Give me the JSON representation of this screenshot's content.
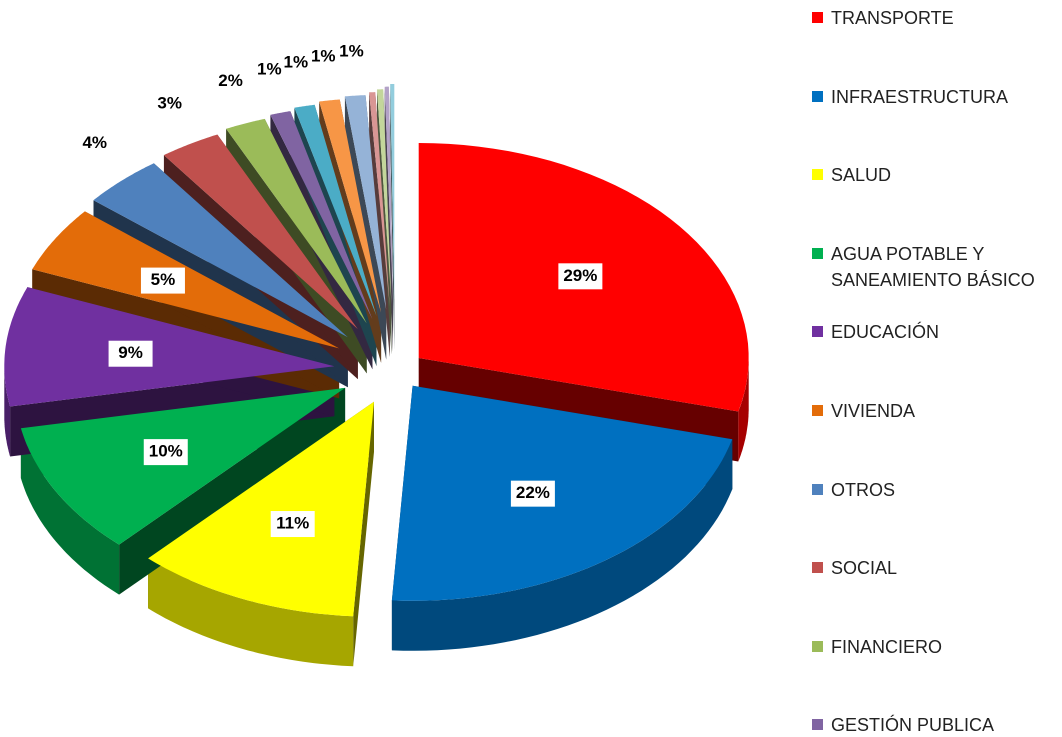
{
  "chart_data": {
    "type": "pie",
    "categories": [
      "TRANSPORTE",
      "INFRAESTRUCTURA",
      "SALUD",
      "AGUA POTABLE Y SANEAMIENTO BÁSICO",
      "EDUCACIÓN",
      "VIVIENDA",
      "OTROS",
      "SOCIAL",
      "FINANCIERO",
      "GESTIÓN PUBLICA",
      null,
      null,
      null,
      null,
      null,
      null,
      null
    ],
    "values": [
      29,
      22,
      11,
      10,
      9,
      5,
      4,
      3,
      2,
      1,
      1,
      1,
      1,
      0.3,
      0.3,
      0.2,
      0.2
    ],
    "value_labels": [
      "29%",
      "22%",
      "11%",
      "10%",
      "9%",
      "5%",
      "4%",
      "3%",
      "2%",
      "1%",
      "1%",
      "1%",
      "1%",
      null,
      null,
      null,
      null
    ],
    "colors": [
      "#ff0000",
      "#0070c0",
      "#ffff00",
      "#00b050",
      "#7030a0",
      "#e36c09",
      "#4f81bd",
      "#c0504d",
      "#9bbb59",
      "#8064a2",
      "#4bacc6",
      "#f79646",
      "#95b3d7",
      "#d99694",
      "#c3d69b",
      "#b3a2c7",
      "#93cddd"
    ]
  }
}
